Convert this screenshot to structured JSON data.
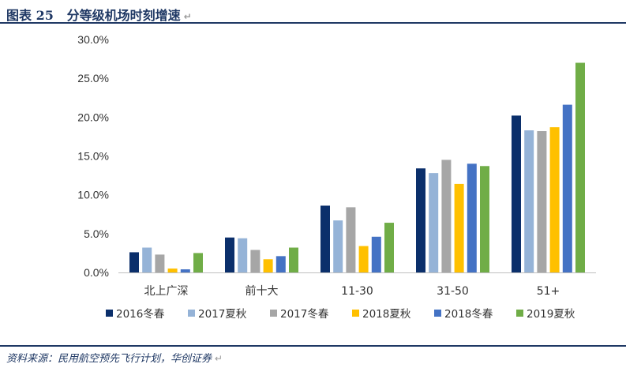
{
  "header": {
    "figure_label": "图表 25",
    "title": "分等级机场时刻增速"
  },
  "footer": {
    "source": "资料来源：民用航空预先飞行计划，华创证券"
  },
  "colors": {
    "rule": "#1f3864",
    "text": "#1f3864"
  },
  "chart_data": {
    "type": "bar",
    "categories": [
      "北上广深",
      "前十大",
      "11-30",
      "31-50",
      "51+"
    ],
    "y_ticks": [
      "0.0%",
      "5.0%",
      "10.0%",
      "15.0%",
      "20.0%",
      "25.0%",
      "30.0%"
    ],
    "ylim": [
      0,
      30
    ],
    "unit": "%",
    "grid": false,
    "legend_position": "bottom",
    "series": [
      {
        "name": "2016冬春",
        "color": "#0b2f6b",
        "values": [
          2.6,
          4.5,
          8.6,
          13.4,
          20.2
        ]
      },
      {
        "name": "2017夏秋",
        "color": "#95b3d7",
        "values": [
          3.2,
          4.4,
          6.7,
          12.8,
          18.3
        ]
      },
      {
        "name": "2017冬春",
        "color": "#a6a6a6",
        "values": [
          2.3,
          2.9,
          8.4,
          14.5,
          18.2
        ]
      },
      {
        "name": "2018夏秋",
        "color": "#ffc000",
        "values": [
          0.5,
          1.7,
          3.4,
          11.4,
          18.7
        ]
      },
      {
        "name": "2018冬春",
        "color": "#4472c4",
        "values": [
          0.4,
          2.1,
          4.6,
          14.0,
          21.6
        ]
      },
      {
        "name": "2019夏秋",
        "color": "#70ad47",
        "values": [
          2.5,
          3.2,
          6.4,
          13.7,
          27.0
        ]
      }
    ]
  }
}
